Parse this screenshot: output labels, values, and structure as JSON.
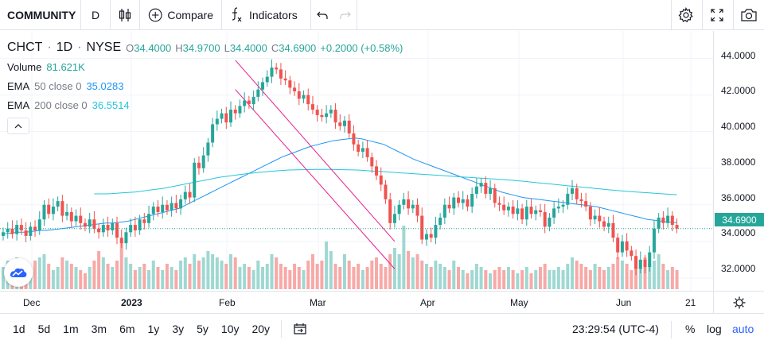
{
  "toolbar": {
    "symbol": "COMMUNITY",
    "interval": "D",
    "compare_label": "Compare",
    "indicators_label": "Indicators",
    "icons": [
      "candles-icon",
      "add-circle-icon",
      "fx-icon",
      "undo-icon",
      "redo-icon",
      "gear-icon",
      "fullscreen-icon",
      "camera-icon"
    ]
  },
  "legend": {
    "ticker": "CHCT",
    "interval": "1D",
    "exchange": "NYSE",
    "open_label": "O",
    "open": "34.4000",
    "high_label": "H",
    "high": "34.9700",
    "low_label": "L",
    "low": "34.4000",
    "close_label": "C",
    "close": "34.6900",
    "change": "+0.2000 (+0.58%)",
    "volume_label": "Volume",
    "volume": "81.621K",
    "ema50_name": "EMA",
    "ema50_args": "50 close 0",
    "ema50_value": "35.0283",
    "ema200_name": "EMA",
    "ema200_args": "200 close 0",
    "ema200_value": "36.5514"
  },
  "price_axis": {
    "labels": [
      "44.0000",
      "42.0000",
      "40.0000",
      "38.0000",
      "36.0000",
      "34.0000",
      "32.0000"
    ],
    "current_price": "34.6900"
  },
  "time_axis": {
    "labels": [
      "Dec",
      "2023",
      "Feb",
      "Mar",
      "Apr",
      "May",
      "Jun",
      "21"
    ]
  },
  "bottom_bar": {
    "ranges": [
      "1d",
      "5d",
      "1m",
      "3m",
      "6m",
      "1y",
      "3y",
      "5y",
      "10y",
      "20y"
    ],
    "clock": "23:29:54 (UTC-4)",
    "percent_label": "%",
    "log_label": "log",
    "auto_label": "auto"
  },
  "colors": {
    "up": "#26a69a",
    "down": "#ef5350",
    "ema50": "#2196f3",
    "ema200": "#26c6da",
    "channel": "#e91e8c",
    "accent": "#2962ff"
  },
  "chart_data": {
    "type": "candlestick",
    "ylim": [
      31.3,
      45.5
    ],
    "closes": [
      34.5,
      34.7,
      34.4,
      34.9,
      34.6,
      34.3,
      34.8,
      34.6,
      35.2,
      36.0,
      35.5,
      35.9,
      36.2,
      35.4,
      35.6,
      35.1,
      35.4,
      35.0,
      34.8,
      35.2,
      34.7,
      34.5,
      34.9,
      34.6,
      35.0,
      34.2,
      33.9,
      34.5,
      34.9,
      34.6,
      35.2,
      35.0,
      35.5,
      35.9,
      35.6,
      36.0,
      35.7,
      36.1,
      35.8,
      36.3,
      36.7,
      36.4,
      38.3,
      38.0,
      38.7,
      39.4,
      40.4,
      40.7,
      41.0,
      40.5,
      41.2,
      41.0,
      41.4,
      41.7,
      41.5,
      41.9,
      42.3,
      42.7,
      43.0,
      43.5,
      43.4,
      42.9,
      42.8,
      42.4,
      42.2,
      41.8,
      42.0,
      41.5,
      41.2,
      40.9,
      40.8,
      41.0,
      41.2,
      40.5,
      40.3,
      40.6,
      39.9,
      39.3,
      38.9,
      39.1,
      38.6,
      38.1,
      37.6,
      37.1,
      36.3,
      35.0,
      35.5,
      36.0,
      36.3,
      35.8,
      36.0,
      35.4,
      34.1,
      34.4,
      34.2,
      34.9,
      35.3,
      36.0,
      35.8,
      36.4,
      36.1,
      36.3,
      35.9,
      36.6,
      37.0,
      37.2,
      36.6,
      36.9,
      36.1,
      36.0,
      35.7,
      35.9,
      35.5,
      35.8,
      35.2,
      35.9,
      35.5,
      35.7,
      35.6,
      34.8,
      35.3,
      35.8,
      35.9,
      36.0,
      36.6,
      36.9,
      36.3,
      36.2,
      35.9,
      35.2,
      35.4,
      35.1,
      34.8,
      35.0,
      34.2,
      33.4,
      34.0,
      33.5,
      33.2,
      32.5,
      33.0,
      32.6,
      33.4,
      34.7,
      35.3,
      35.0,
      35.4,
      34.9,
      34.7
    ],
    "volumes": [
      0.35,
      0.45,
      0.3,
      0.5,
      0.4,
      0.35,
      0.3,
      0.45,
      0.5,
      0.55,
      0.4,
      0.3,
      0.35,
      0.5,
      0.45,
      0.4,
      0.35,
      0.3,
      0.25,
      0.35,
      0.45,
      0.6,
      0.5,
      0.4,
      0.35,
      0.45,
      0.8,
      0.5,
      0.4,
      0.3,
      0.35,
      0.4,
      0.3,
      0.45,
      0.35,
      0.3,
      0.4,
      0.35,
      0.3,
      0.45,
      0.5,
      0.4,
      0.55,
      0.45,
      0.5,
      0.6,
      0.55,
      0.5,
      0.45,
      0.4,
      0.55,
      0.5,
      0.35,
      0.4,
      0.35,
      0.3,
      0.45,
      0.35,
      0.4,
      0.55,
      0.5,
      0.4,
      0.35,
      0.3,
      0.4,
      0.35,
      0.3,
      0.45,
      0.55,
      0.4,
      0.45,
      0.75,
      0.6,
      0.4,
      0.35,
      0.55,
      0.45,
      0.35,
      0.4,
      0.3,
      0.35,
      0.45,
      0.5,
      0.4,
      0.35,
      0.55,
      0.65,
      0.55,
      1.0,
      0.6,
      0.5,
      0.55,
      0.45,
      0.4,
      0.35,
      0.45,
      0.4,
      0.35,
      0.3,
      0.45,
      0.35,
      0.3,
      0.25,
      0.3,
      0.4,
      0.35,
      0.3,
      0.25,
      0.3,
      0.35,
      0.3,
      0.35,
      0.3,
      0.25,
      0.3,
      0.35,
      0.25,
      0.3,
      0.35,
      0.4,
      0.3,
      0.3,
      0.35,
      0.3,
      0.4,
      0.5,
      0.45,
      0.4,
      0.35,
      0.3,
      0.4,
      0.35,
      0.3,
      0.35,
      0.4,
      0.5,
      0.45,
      0.4,
      0.3,
      0.35,
      0.45,
      0.5,
      0.4,
      0.45,
      0.55,
      0.4,
      0.3,
      0.35,
      0.3
    ],
    "ema50": [
      34.4,
      34.45,
      34.5,
      34.5,
      34.55,
      34.6,
      34.6,
      34.65,
      34.7,
      34.75,
      34.8,
      34.85,
      34.9,
      34.95,
      35.0,
      35.0,
      35.05,
      35.1,
      35.2,
      35.3,
      35.4,
      35.5,
      35.6,
      35.7,
      35.8,
      36.0,
      36.2,
      36.4,
      36.6,
      36.8,
      37.0,
      37.2,
      37.4,
      37.6,
      37.8,
      38.0,
      38.2,
      38.4,
      38.6,
      38.75,
      38.9,
      39.05,
      39.2,
      39.3,
      39.4,
      39.5,
      39.55,
      39.6,
      39.65,
      39.6,
      39.5,
      39.4,
      39.3,
      39.1,
      38.9,
      38.7,
      38.5,
      38.35,
      38.2,
      38.05,
      37.9,
      37.75,
      37.6,
      37.45,
      37.3,
      37.15,
      37.0,
      36.85,
      36.7,
      36.6,
      36.5,
      36.4,
      36.35,
      36.3,
      36.25,
      36.2,
      36.15,
      36.1,
      36.05,
      36.0,
      35.95,
      35.9,
      35.8,
      35.7,
      35.6,
      35.5,
      35.4,
      35.3,
      35.2,
      35.15,
      35.1,
      35.05,
      35.02
    ],
    "ema200": [
      36.6,
      36.6,
      36.65,
      36.7,
      36.8,
      36.9,
      37.05,
      37.2,
      37.35,
      37.5,
      37.6,
      37.7,
      37.78,
      37.85,
      37.9,
      37.92,
      37.93,
      37.93,
      37.92,
      37.9,
      37.85,
      37.8,
      37.75,
      37.7,
      37.65,
      37.6,
      37.55,
      37.5,
      37.45,
      37.4,
      37.35,
      37.28,
      37.2,
      37.13,
      37.05,
      36.98,
      36.9,
      36.83,
      36.76,
      36.7,
      36.65,
      36.6,
      36.55
    ],
    "channel_upper": [
      [
        43.9,
        0
      ],
      [
        34.0,
        1
      ]
    ],
    "channel_lower": [
      [
        42.3,
        0
      ],
      [
        32.5,
        1
      ]
    ]
  }
}
